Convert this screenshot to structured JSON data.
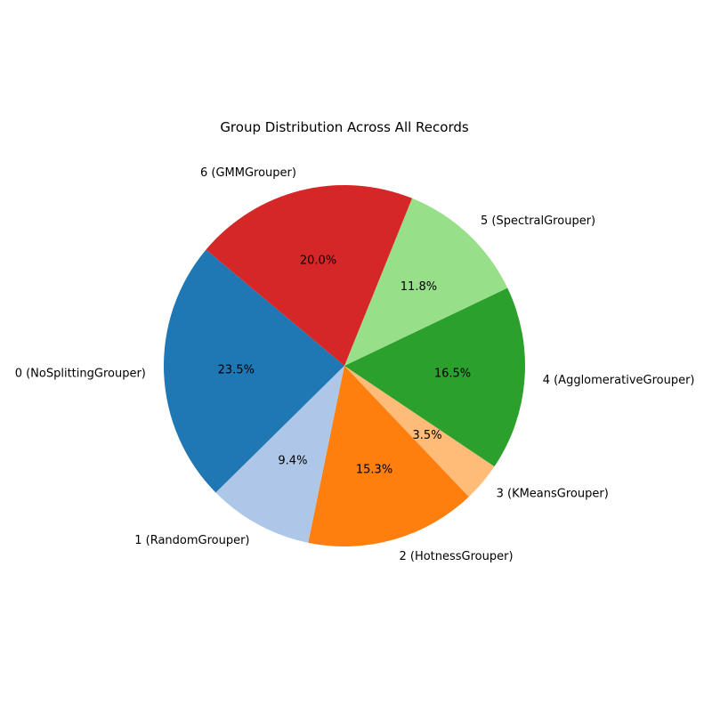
{
  "chart_data": {
    "type": "pie",
    "title": "Group Distribution Across All Records",
    "start_angle_deg": 140,
    "direction": "counterclockwise",
    "slices": [
      {
        "label": "0 (NoSplittingGrouper)",
        "value": 23.5,
        "pct_label": "23.5%",
        "color": "#1f77b4"
      },
      {
        "label": "1 (RandomGrouper)",
        "value": 9.4,
        "pct_label": "9.4%",
        "color": "#aec7e8"
      },
      {
        "label": "2 (HotnessGrouper)",
        "value": 15.3,
        "pct_label": "15.3%",
        "color": "#ff7f0e"
      },
      {
        "label": "3 (KMeansGrouper)",
        "value": 3.5,
        "pct_label": "3.5%",
        "color": "#ffbb78"
      },
      {
        "label": "4 (AgglomerativeGrouper)",
        "value": 16.5,
        "pct_label": "16.5%",
        "color": "#2ca02c"
      },
      {
        "label": "5 (SpectralGrouper)",
        "value": 11.8,
        "pct_label": "11.8%",
        "color": "#98df8a"
      },
      {
        "label": "6 (GMMGrouper)",
        "value": 20.0,
        "pct_label": "20.0%",
        "color": "#d62728"
      }
    ]
  }
}
